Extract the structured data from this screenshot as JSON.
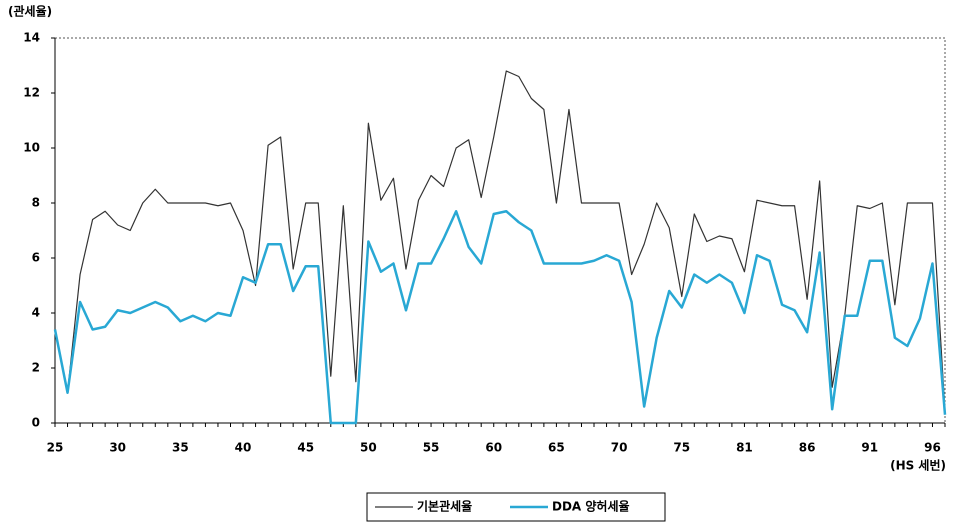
{
  "chart_data": {
    "type": "line",
    "y_label": "(관세율)",
    "x_label": "(HS 세번)",
    "categories": [
      "25",
      null,
      null,
      null,
      null,
      "30",
      null,
      null,
      null,
      null,
      "35",
      null,
      null,
      null,
      null,
      "40",
      null,
      null,
      null,
      null,
      "45",
      null,
      null,
      null,
      null,
      "50",
      null,
      null,
      null,
      null,
      "55",
      null,
      null,
      null,
      null,
      "60",
      null,
      null,
      null,
      null,
      "65",
      null,
      null,
      null,
      null,
      "70",
      null,
      null,
      null,
      null,
      "75",
      null,
      null,
      null,
      null,
      "81",
      null,
      null,
      null,
      null,
      "86",
      null,
      null,
      null,
      null,
      "91",
      null,
      null,
      null,
      null,
      "96",
      null
    ],
    "ylim": [
      0,
      14
    ],
    "yticks": [
      0,
      2,
      4,
      6,
      8,
      10,
      12,
      14
    ],
    "series": [
      {
        "name": "기본관세율",
        "color": "#333333",
        "values": [
          3.4,
          1.1,
          5.4,
          7.4,
          7.7,
          7.2,
          7.0,
          8.0,
          8.5,
          8.0,
          8.0,
          8.0,
          8.0,
          7.9,
          8.0,
          7.0,
          5.0,
          10.1,
          10.4,
          5.6,
          8.0,
          8.0,
          1.7,
          7.9,
          1.5,
          10.9,
          8.1,
          8.9,
          5.6,
          8.1,
          9.0,
          8.6,
          10.0,
          10.3,
          8.2,
          10.4,
          12.8,
          12.6,
          11.8,
          11.4,
          8.0,
          11.4,
          8.0,
          8.0,
          8.0,
          8.0,
          5.4,
          6.5,
          8.0,
          7.1,
          4.6,
          7.6,
          6.6,
          6.8,
          6.7,
          5.5,
          8.1,
          8.0,
          7.9,
          7.9,
          4.5,
          8.8,
          1.3,
          3.9,
          7.9,
          7.8,
          8.0,
          4.3,
          8.0,
          8.0,
          8.0,
          0.4
        ]
      },
      {
        "name": "DDA 양허세율",
        "color": "#29a8d4",
        "values": [
          3.4,
          1.1,
          4.4,
          3.4,
          3.5,
          4.1,
          4.0,
          4.2,
          4.4,
          4.2,
          3.7,
          3.9,
          3.7,
          4.0,
          3.9,
          5.3,
          5.1,
          6.5,
          6.5,
          4.8,
          5.7,
          5.7,
          0,
          0,
          0,
          6.6,
          5.5,
          5.8,
          4.1,
          5.8,
          5.8,
          6.7,
          7.7,
          6.4,
          5.8,
          7.6,
          7.7,
          7.3,
          7.0,
          5.8,
          5.8,
          5.8,
          5.8,
          5.9,
          6.1,
          5.9,
          4.4,
          0.6,
          3.1,
          4.8,
          4.2,
          5.4,
          5.1,
          5.4,
          5.1,
          4.0,
          6.1,
          5.9,
          4.3,
          4.1,
          3.3,
          6.2,
          0.5,
          3.9,
          3.9,
          5.9,
          5.9,
          3.1,
          2.8,
          3.8,
          5.8,
          0.3
        ]
      }
    ]
  }
}
